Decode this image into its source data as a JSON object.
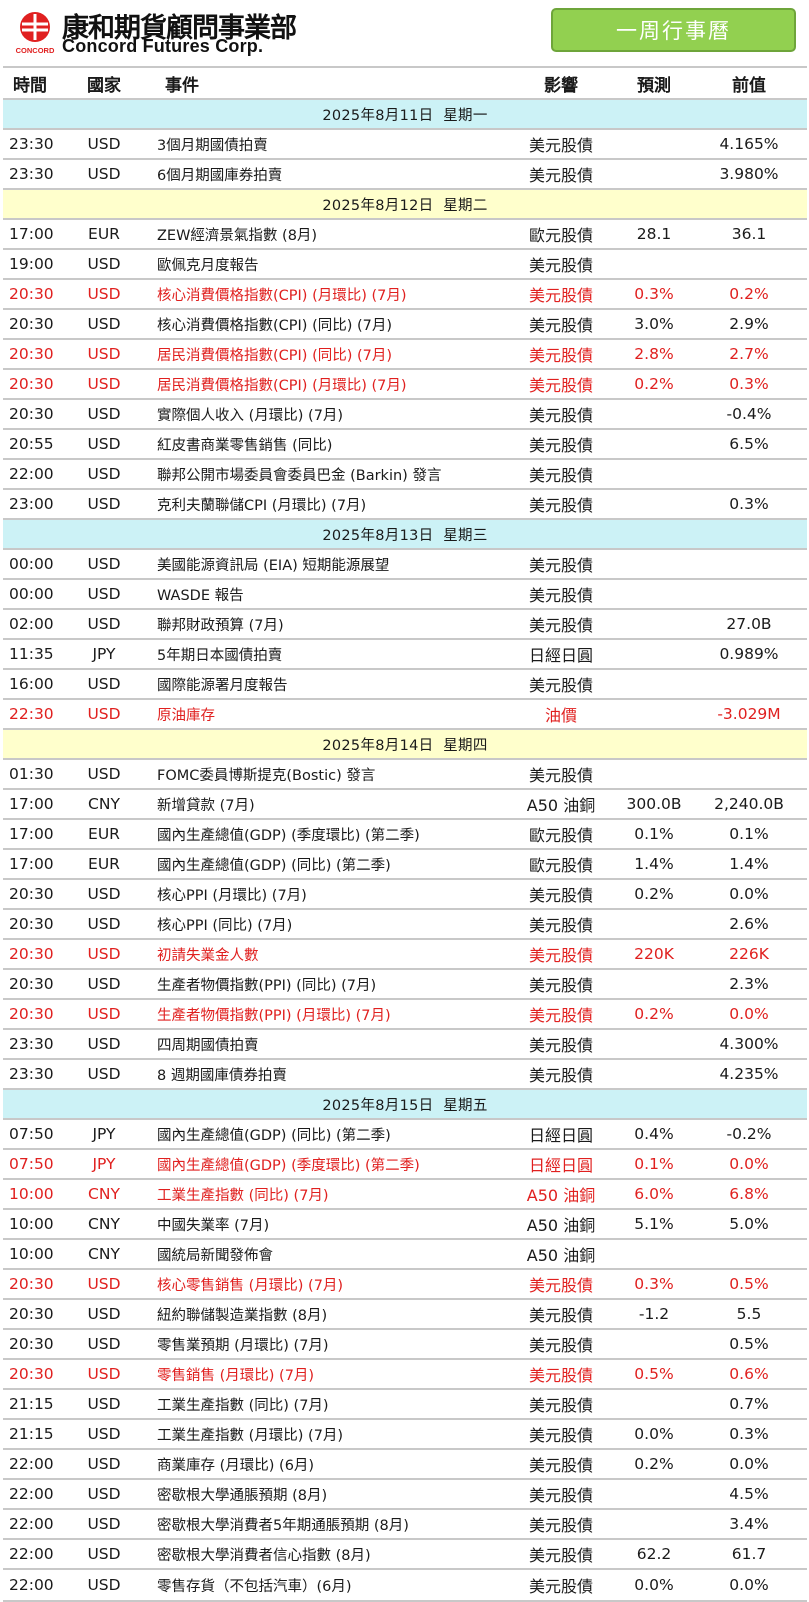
{
  "header": {
    "logo_small_text": "CONCORD",
    "company_cn": "康和期貨顧問事業部",
    "company_en": "Concord Futures Corp.",
    "week_button": "一周行事曆"
  },
  "columns": {
    "time": "時間",
    "country": "國家",
    "event": "事件",
    "impact": "影響",
    "forecast": "預測",
    "previous": "前值"
  },
  "days": [
    {
      "date": "2025年8月11日  星期一",
      "events": [
        {
          "time": "23:30",
          "cur": "USD",
          "event": "3個月期國債拍賣",
          "impact": "美元股債",
          "forecast": "",
          "prev": "4.165%",
          "red": false
        },
        {
          "time": "23:30",
          "cur": "USD",
          "event": "6個月期國庫券拍賣",
          "impact": "美元股債",
          "forecast": "",
          "prev": "3.980%",
          "red": false
        }
      ]
    },
    {
      "date": "2025年8月12日  星期二",
      "events": [
        {
          "time": "17:00",
          "cur": "EUR",
          "event": "ZEW經濟景氣指數 (8月)",
          "impact": "歐元股債",
          "forecast": "28.1",
          "prev": "36.1",
          "red": false
        },
        {
          "time": "19:00",
          "cur": "USD",
          "event": "歐佩克月度報告",
          "impact": "美元股債",
          "forecast": "",
          "prev": "",
          "red": false
        },
        {
          "time": "20:30",
          "cur": "USD",
          "event": "核心消費價格指數(CPI) (月環比) (7月)",
          "impact": "美元股債",
          "forecast": "0.3%",
          "prev": "0.2%",
          "red": true
        },
        {
          "time": "20:30",
          "cur": "USD",
          "event": "核心消費價格指數(CPI) (同比) (7月)",
          "impact": "美元股債",
          "forecast": "3.0%",
          "prev": "2.9%",
          "red": false
        },
        {
          "time": "20:30",
          "cur": "USD",
          "event": "居民消費價格指數(CPI) (同比) (7月)",
          "impact": "美元股債",
          "forecast": "2.8%",
          "prev": "2.7%",
          "red": true
        },
        {
          "time": "20:30",
          "cur": "USD",
          "event": "居民消費價格指數(CPI) (月環比) (7月)",
          "impact": "美元股債",
          "forecast": "0.2%",
          "prev": "0.3%",
          "red": true
        },
        {
          "time": "20:30",
          "cur": "USD",
          "event": "實際個人收入 (月環比) (7月)",
          "impact": "美元股債",
          "forecast": "",
          "prev": "-0.4%",
          "red": false
        },
        {
          "time": "20:55",
          "cur": "USD",
          "event": "紅皮書商業零售銷售 (同比)",
          "impact": "美元股債",
          "forecast": "",
          "prev": "6.5%",
          "red": false
        },
        {
          "time": "22:00",
          "cur": "USD",
          "event": "聯邦公開市場委員會委員巴金 (Barkin) 發言",
          "impact": "美元股債",
          "forecast": "",
          "prev": "",
          "red": false
        },
        {
          "time": "23:00",
          "cur": "USD",
          "event": "克利夫蘭聯儲CPI (月環比) (7月)",
          "impact": "美元股債",
          "forecast": "",
          "prev": "0.3%",
          "red": false
        }
      ]
    },
    {
      "date": "2025年8月13日  星期三",
      "events": [
        {
          "time": "00:00",
          "cur": "USD",
          "event": "美國能源資訊局 (EIA) 短期能源展望",
          "impact": "美元股債",
          "forecast": "",
          "prev": "",
          "red": false
        },
        {
          "time": "00:00",
          "cur": "USD",
          "event": "WASDE 報告",
          "impact": "美元股債",
          "forecast": "",
          "prev": "",
          "red": false
        },
        {
          "time": "02:00",
          "cur": "USD",
          "event": "聯邦財政預算 (7月)",
          "impact": "美元股債",
          "forecast": "",
          "prev": "27.0B",
          "red": false
        },
        {
          "time": "11:35",
          "cur": "JPY",
          "event": "5年期日本國債拍賣",
          "impact": "日經日圓",
          "forecast": "",
          "prev": "0.989%",
          "red": false
        },
        {
          "time": "16:00",
          "cur": "USD",
          "event": "國際能源署月度報告",
          "impact": "美元股債",
          "forecast": "",
          "prev": "",
          "red": false
        },
        {
          "time": "22:30",
          "cur": "USD",
          "event": "原油庫存",
          "impact": "油價",
          "forecast": "",
          "prev": "-3.029M",
          "red": true
        }
      ]
    },
    {
      "date": "2025年8月14日  星期四",
      "events": [
        {
          "time": "01:30",
          "cur": "USD",
          "event": "FOMC委員博斯提克(Bostic) 發言",
          "impact": "美元股債",
          "forecast": "",
          "prev": "",
          "red": false
        },
        {
          "time": "17:00",
          "cur": "CNY",
          "event": "新增貸款 (7月)",
          "impact": "A50 油銅",
          "forecast": "300.0B",
          "prev": "2,240.0B",
          "red": false
        },
        {
          "time": "17:00",
          "cur": "EUR",
          "event": "國內生產總值(GDP) (季度環比) (第二季)",
          "impact": "歐元股債",
          "forecast": "0.1%",
          "prev": "0.1%",
          "red": false
        },
        {
          "time": "17:00",
          "cur": "EUR",
          "event": "國內生產總值(GDP) (同比) (第二季)",
          "impact": "歐元股債",
          "forecast": "1.4%",
          "prev": "1.4%",
          "red": false
        },
        {
          "time": "20:30",
          "cur": "USD",
          "event": "核心PPI (月環比) (7月)",
          "impact": "美元股債",
          "forecast": "0.2%",
          "prev": "0.0%",
          "red": false
        },
        {
          "time": "20:30",
          "cur": "USD",
          "event": "核心PPI (同比) (7月)",
          "impact": "美元股債",
          "forecast": "",
          "prev": "2.6%",
          "red": false
        },
        {
          "time": "20:30",
          "cur": "USD",
          "event": "初請失業金人數",
          "impact": "美元股債",
          "forecast": "220K",
          "prev": "226K",
          "red": true
        },
        {
          "time": "20:30",
          "cur": "USD",
          "event": "生產者物價指數(PPI) (同比) (7月)",
          "impact": "美元股債",
          "forecast": "",
          "prev": "2.3%",
          "red": false
        },
        {
          "time": "20:30",
          "cur": "USD",
          "event": "生產者物價指數(PPI) (月環比) (7月)",
          "impact": "美元股債",
          "forecast": "0.2%",
          "prev": "0.0%",
          "red": true
        },
        {
          "time": "23:30",
          "cur": "USD",
          "event": "四周期國債拍賣",
          "impact": "美元股債",
          "forecast": "",
          "prev": "4.300%",
          "red": false
        },
        {
          "time": "23:30",
          "cur": "USD",
          "event": "8 週期國庫債券拍賣",
          "impact": "美元股債",
          "forecast": "",
          "prev": "4.235%",
          "red": false
        }
      ]
    },
    {
      "date": "2025年8月15日  星期五",
      "events": [
        {
          "time": "07:50",
          "cur": "JPY",
          "event": "國內生產總值(GDP) (同比) (第二季)",
          "impact": "日經日圓",
          "forecast": "0.4%",
          "prev": "-0.2%",
          "red": false
        },
        {
          "time": "07:50",
          "cur": "JPY",
          "event": "國內生產總值(GDP) (季度環比) (第二季)",
          "impact": "日經日圓",
          "forecast": "0.1%",
          "prev": "0.0%",
          "red": true
        },
        {
          "time": "10:00",
          "cur": "CNY",
          "event": "工業生產指數 (同比) (7月)",
          "impact": "A50 油銅",
          "forecast": "6.0%",
          "prev": "6.8%",
          "red": true
        },
        {
          "time": "10:00",
          "cur": "CNY",
          "event": "中國失業率 (7月)",
          "impact": "A50 油銅",
          "forecast": "5.1%",
          "prev": "5.0%",
          "red": false
        },
        {
          "time": "10:00",
          "cur": "CNY",
          "event": "國統局新聞發佈會",
          "impact": "A50 油銅",
          "forecast": "",
          "prev": "",
          "red": false
        },
        {
          "time": "20:30",
          "cur": "USD",
          "event": "核心零售銷售 (月環比) (7月)",
          "impact": "美元股債",
          "forecast": "0.3%",
          "prev": "0.5%",
          "red": true
        },
        {
          "time": "20:30",
          "cur": "USD",
          "event": "紐約聯儲製造業指數 (8月)",
          "impact": "美元股債",
          "forecast": "-1.2",
          "prev": "5.5",
          "red": false
        },
        {
          "time": "20:30",
          "cur": "USD",
          "event": "零售業預期 (月環比) (7月)",
          "impact": "美元股債",
          "forecast": "",
          "prev": "0.5%",
          "red": false
        },
        {
          "time": "20:30",
          "cur": "USD",
          "event": "零售銷售 (月環比) (7月)",
          "impact": "美元股債",
          "forecast": "0.5%",
          "prev": "0.6%",
          "red": true
        },
        {
          "time": "21:15",
          "cur": "USD",
          "event": "工業生產指數 (同比) (7月)",
          "impact": "美元股債",
          "forecast": "",
          "prev": "0.7%",
          "red": false
        },
        {
          "time": "21:15",
          "cur": "USD",
          "event": "工業生產指數 (月環比) (7月)",
          "impact": "美元股債",
          "forecast": "0.0%",
          "prev": "0.3%",
          "red": false
        },
        {
          "time": "22:00",
          "cur": "USD",
          "event": "商業庫存 (月環比) (6月)",
          "impact": "美元股債",
          "forecast": "0.2%",
          "prev": "0.0%",
          "red": false
        },
        {
          "time": "22:00",
          "cur": "USD",
          "event": "密歇根大學通脹預期 (8月)",
          "impact": "美元股債",
          "forecast": "",
          "prev": "4.5%",
          "red": false
        },
        {
          "time": "22:00",
          "cur": "USD",
          "event": "密歇根大學消費者5年期通脹預期 (8月)",
          "impact": "美元股債",
          "forecast": "",
          "prev": "3.4%",
          "red": false
        },
        {
          "time": "22:00",
          "cur": "USD",
          "event": "密歇根大學消費者信心指數 (8月)",
          "impact": "美元股債",
          "forecast": "62.2",
          "prev": "61.7",
          "red": false
        },
        {
          "time": "22:00",
          "cur": "USD",
          "event": "零售存貨（不包括汽車）(6月)",
          "impact": "美元股債",
          "forecast": "0.0%",
          "prev": "0.0%",
          "red": false
        }
      ]
    }
  ]
}
